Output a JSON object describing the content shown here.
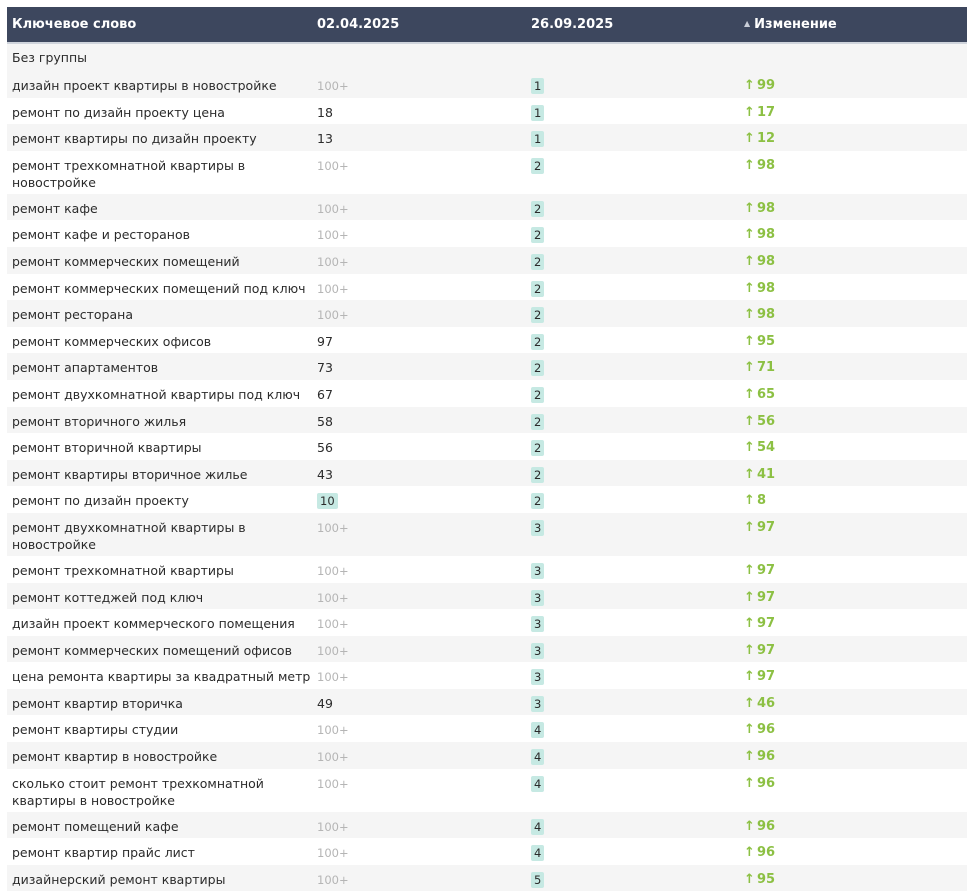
{
  "header": {
    "keyword": "Ключевое слово",
    "date1": "02.04.2025",
    "date2": "26.09.2025",
    "change": "Изменение"
  },
  "group_label": "Без группы",
  "colors": {
    "header_bg": "#3d475e",
    "change_up": "#8cc043",
    "badge_bg": "#c6e9e3"
  },
  "rows": [
    {
      "keyword": "дизайн проект квартиры в новостройке",
      "d1": "100+",
      "d2": "1",
      "change": "99"
    },
    {
      "keyword": "ремонт по дизайн проекту цена",
      "d1": "18",
      "d2": "1",
      "change": "17"
    },
    {
      "keyword": "ремонт квартиры по дизайн проекту",
      "d1": "13",
      "d2": "1",
      "change": "12"
    },
    {
      "keyword": "ремонт трехкомнатной квартиры в новостройке",
      "d1": "100+",
      "d2": "2",
      "change": "98"
    },
    {
      "keyword": "ремонт кафе",
      "d1": "100+",
      "d2": "2",
      "change": "98"
    },
    {
      "keyword": "ремонт кафе и ресторанов",
      "d1": "100+",
      "d2": "2",
      "change": "98"
    },
    {
      "keyword": "ремонт коммерческих помещений",
      "d1": "100+",
      "d2": "2",
      "change": "98"
    },
    {
      "keyword": "ремонт коммерческих помещений под ключ",
      "d1": "100+",
      "d2": "2",
      "change": "98"
    },
    {
      "keyword": "ремонт ресторана",
      "d1": "100+",
      "d2": "2",
      "change": "98"
    },
    {
      "keyword": "ремонт коммерческих офисов",
      "d1": "97",
      "d2": "2",
      "change": "95"
    },
    {
      "keyword": "ремонт апартаментов",
      "d1": "73",
      "d2": "2",
      "change": "71"
    },
    {
      "keyword": "ремонт двухкомнатной квартиры под ключ",
      "d1": "67",
      "d2": "2",
      "change": "65"
    },
    {
      "keyword": "ремонт вторичного жилья",
      "d1": "58",
      "d2": "2",
      "change": "56"
    },
    {
      "keyword": "ремонт вторичной квартиры",
      "d1": "56",
      "d2": "2",
      "change": "54"
    },
    {
      "keyword": "ремонт квартиры вторичное жилье",
      "d1": "43",
      "d2": "2",
      "change": "41"
    },
    {
      "keyword": "ремонт по дизайн проекту",
      "d1": "10",
      "d1_badge": true,
      "d2": "2",
      "change": "8"
    },
    {
      "keyword": "ремонт двухкомнатной квартиры в новостройке",
      "d1": "100+",
      "d2": "3",
      "change": "97"
    },
    {
      "keyword": "ремонт трехкомнатной квартиры",
      "d1": "100+",
      "d2": "3",
      "change": "97"
    },
    {
      "keyword": "ремонт коттеджей под ключ",
      "d1": "100+",
      "d2": "3",
      "change": "97"
    },
    {
      "keyword": "дизайн проект коммерческого помещения",
      "d1": "100+",
      "d2": "3",
      "change": "97"
    },
    {
      "keyword": "ремонт коммерческих помещений офисов",
      "d1": "100+",
      "d2": "3",
      "change": "97"
    },
    {
      "keyword": "цена ремонта квартиры за квадратный метр",
      "d1": "100+",
      "d2": "3",
      "change": "97"
    },
    {
      "keyword": "ремонт квартир вторичка",
      "d1": "49",
      "d2": "3",
      "change": "46"
    },
    {
      "keyword": "ремонт квартиры студии",
      "d1": "100+",
      "d2": "4",
      "change": "96"
    },
    {
      "keyword": "ремонт квартир в новостройке",
      "d1": "100+",
      "d2": "4",
      "change": "96"
    },
    {
      "keyword": "сколько стоит ремонт трехкомнатной квартиры в новостройке",
      "d1": "100+",
      "d2": "4",
      "change": "96"
    },
    {
      "keyword": "ремонт помещений кафе",
      "d1": "100+",
      "d2": "4",
      "change": "96"
    },
    {
      "keyword": "ремонт квартир прайс лист",
      "d1": "100+",
      "d2": "4",
      "change": "96"
    },
    {
      "keyword": "дизайнерский ремонт квартиры",
      "d1": "100+",
      "d2": "5",
      "change": "95"
    }
  ]
}
